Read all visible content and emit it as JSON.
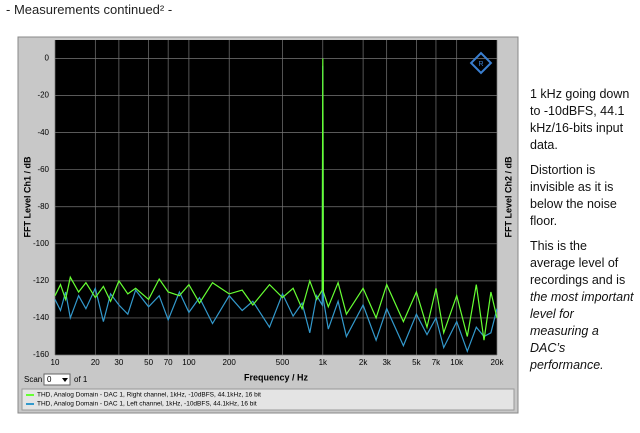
{
  "header": "- Measurements continued² -",
  "chart_data": {
    "type": "line",
    "ylabel": "FFT Level Ch1 / dB",
    "y2label": "FFT Level Ch2 / dB",
    "xlabel": "Frequency / Hz",
    "xscale": "log",
    "grid": true,
    "x": [
      10,
      11,
      12,
      13,
      15,
      17,
      20,
      23,
      26,
      30,
      35,
      40,
      50,
      60,
      70,
      85,
      100,
      120,
      150,
      200,
      250,
      300,
      400,
      500,
      600,
      700,
      800,
      900,
      990,
      1000,
      1010,
      1100,
      1300,
      1500,
      2000,
      2500,
      3000,
      4000,
      5000,
      6000,
      7000,
      8000,
      10000,
      12000,
      14000,
      16000,
      18000,
      20000
    ],
    "series": [
      {
        "name": "THD, Analog Domain - DAC 1, Right channel, 1kHz, -10dBFS, 44.1kHz, 16 bit",
        "color": "#66ff33",
        "values": [
          -128,
          -122,
          -130,
          -118,
          -126,
          -121,
          -129,
          -123,
          -131,
          -120,
          -127,
          -124,
          -130,
          -119,
          -126,
          -128,
          -122,
          -132,
          -121,
          -127,
          -125,
          -133,
          -122,
          -129,
          -124,
          -135,
          -120,
          -130,
          -125,
          0,
          -126,
          -134,
          -121,
          -138,
          -124,
          -140,
          -122,
          -142,
          -126,
          -145,
          -124,
          -148,
          -128,
          -150,
          -122,
          -152,
          -126,
          -140
        ]
      },
      {
        "name": "THD, Analog Domain - DAC 1, Left channel,  1kHz, -10dBFS, 44.1kHz, 16 bit",
        "color": "#3399cc",
        "values": [
          -130,
          -136,
          -126,
          -140,
          -128,
          -135,
          -124,
          -142,
          -127,
          -133,
          -138,
          -125,
          -134,
          -128,
          -141,
          -126,
          -137,
          -129,
          -143,
          -128,
          -136,
          -131,
          -145,
          -127,
          -139,
          -132,
          -148,
          -128,
          -133,
          -4,
          -130,
          -146,
          -131,
          -150,
          -133,
          -152,
          -135,
          -155,
          -138,
          -149,
          -140,
          -156,
          -142,
          -158,
          -145,
          -150,
          -148,
          -135
        ]
      }
    ],
    "xlim": [
      10,
      20000
    ],
    "ylim": [
      -160,
      10
    ],
    "xticks": [
      10,
      20,
      30,
      50,
      70,
      100,
      200,
      500,
      {
        "value": 1000,
        "label": "1k"
      },
      {
        "value": 2000,
        "label": "2k"
      },
      {
        "value": 3000,
        "label": "3k"
      },
      {
        "value": 5000,
        "label": "5k"
      },
      {
        "value": 7000,
        "label": "7k"
      },
      {
        "value": 10000,
        "label": "10k"
      },
      {
        "value": 20000,
        "label": "20k"
      }
    ],
    "yticks": [
      -160,
      -140,
      -120,
      -100,
      -80,
      -60,
      -40,
      -20,
      0
    ]
  },
  "controls": {
    "scan_label": "Scan",
    "scan_value": "0",
    "scan_of": "of 1"
  },
  "notes": {
    "p1": "1 kHz going down to -10dBFS, 44.1 kHz/16-bits input data.",
    "p2": "Distortion is invisible as it is below the noise floor.",
    "p3_plain": "This is the average level of recordings and is",
    "p3_italic": "the most important level for measuring a DAC’s performance."
  }
}
